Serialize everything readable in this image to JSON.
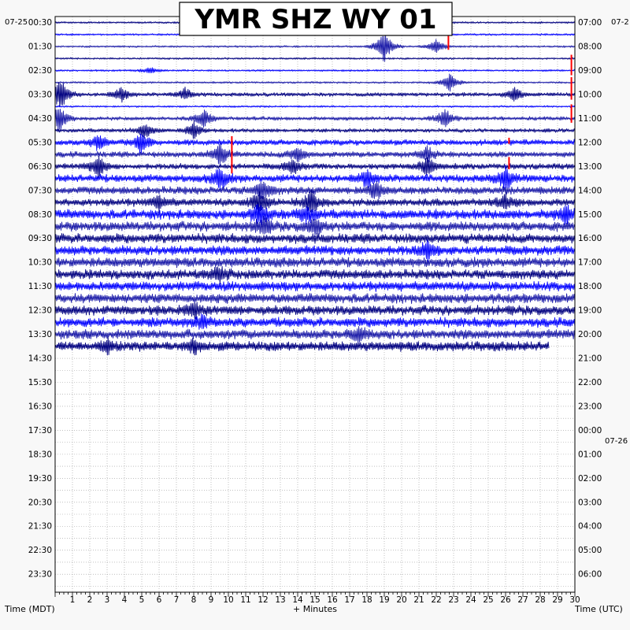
{
  "chart_data": {
    "type": "line",
    "title": "YMR SHZ WY 01",
    "xlabel": "+ Minutes",
    "left_axis_label": "Time (MDT)",
    "right_axis_label": "Time (UTC)",
    "left_date": "07-25",
    "right_date": "07-2",
    "right_date_change": "07-26",
    "x_ticks": [
      1,
      2,
      3,
      4,
      5,
      6,
      7,
      8,
      9,
      10,
      11,
      12,
      13,
      14,
      15,
      16,
      17,
      18,
      19,
      20,
      21,
      22,
      23,
      24,
      25,
      26,
      27,
      28,
      29,
      30
    ],
    "xlim": [
      0,
      30
    ],
    "left_labels": [
      "00:30",
      "01:30",
      "02:30",
      "03:30",
      "04:30",
      "05:30",
      "06:30",
      "07:30",
      "08:30",
      "09:30",
      "10:30",
      "11:30",
      "12:30",
      "13:30",
      "14:30",
      "15:30",
      "16:30",
      "17:30",
      "18:30",
      "19:30",
      "20:30",
      "21:30",
      "22:30",
      "23:30"
    ],
    "right_labels": [
      "07:00",
      "08:00",
      "09:00",
      "10:00",
      "11:00",
      "12:00",
      "13:00",
      "14:00",
      "15:00",
      "16:00",
      "17:00",
      "18:00",
      "19:00",
      "20:00",
      "21:00",
      "22:00",
      "23:00",
      "00:00",
      "01:00",
      "02:00",
      "03:00",
      "04:00",
      "05:00",
      "06:00"
    ],
    "rows_total": 48,
    "rows_recorded": 28,
    "last_row_end_minute": 28.5,
    "trace_colors": [
      "#000080",
      "#0000ff",
      "#1a1aa8"
    ],
    "highlight_color": "#ff0000",
    "grid": true,
    "row_amplitude": [
      1,
      1,
      1,
      1,
      1,
      1,
      2,
      1,
      2,
      2,
      3,
      3,
      3,
      4,
      4,
      4,
      5,
      5,
      5,
      5,
      5,
      5,
      5,
      5,
      5,
      5,
      5,
      5
    ],
    "events": [
      {
        "row": 0,
        "minute": 11.3,
        "amp": 10
      },
      {
        "row": 2,
        "minute": 19.0,
        "amp": 22
      },
      {
        "row": 2,
        "minute": 22.0,
        "amp": 10
      },
      {
        "row": 2,
        "minute": 22.7,
        "amp": 14,
        "red": true
      },
      {
        "row": 4,
        "minute": 5.5,
        "amp": 4
      },
      {
        "row": 4,
        "minute": 29.8,
        "amp": 20,
        "red": true
      },
      {
        "row": 5,
        "minute": 22.8,
        "amp": 12
      },
      {
        "row": 6,
        "minute": 0.3,
        "amp": 22
      },
      {
        "row": 6,
        "minute": 3.8,
        "amp": 9
      },
      {
        "row": 6,
        "minute": 7.5,
        "amp": 7
      },
      {
        "row": 6,
        "minute": 26.5,
        "amp": 9
      },
      {
        "row": 6,
        "minute": 29.8,
        "amp": 22,
        "red": true
      },
      {
        "row": 8,
        "minute": 0.2,
        "amp": 18
      },
      {
        "row": 8,
        "minute": 8.6,
        "amp": 12
      },
      {
        "row": 8,
        "minute": 22.5,
        "amp": 12
      },
      {
        "row": 8,
        "minute": 29.8,
        "amp": 18,
        "red": true
      },
      {
        "row": 9,
        "minute": 5.2,
        "amp": 10
      },
      {
        "row": 9,
        "minute": 8.0,
        "amp": 10
      },
      {
        "row": 10,
        "minute": 2.5,
        "amp": 10
      },
      {
        "row": 10,
        "minute": 5.0,
        "amp": 13
      },
      {
        "row": 10,
        "minute": 10.2,
        "amp": 8,
        "red": true
      },
      {
        "row": 10,
        "minute": 26.2,
        "amp": 6,
        "red": true
      },
      {
        "row": 11,
        "minute": 9.5,
        "amp": 14
      },
      {
        "row": 11,
        "minute": 14.0,
        "amp": 10
      },
      {
        "row": 11,
        "minute": 21.5,
        "amp": 9
      },
      {
        "row": 12,
        "minute": 2.5,
        "amp": 14
      },
      {
        "row": 12,
        "minute": 10.2,
        "amp": 30,
        "red": true
      },
      {
        "row": 12,
        "minute": 13.7,
        "amp": 10
      },
      {
        "row": 12,
        "minute": 21.5,
        "amp": 12
      },
      {
        "row": 12,
        "minute": 26.2,
        "amp": 12,
        "red": true
      },
      {
        "row": 13,
        "minute": 9.5,
        "amp": 14
      },
      {
        "row": 13,
        "minute": 18.0,
        "amp": 10
      },
      {
        "row": 13,
        "minute": 26.0,
        "amp": 14
      },
      {
        "row": 14,
        "minute": 12.0,
        "amp": 12
      },
      {
        "row": 14,
        "minute": 18.5,
        "amp": 12
      },
      {
        "row": 15,
        "minute": 6.0,
        "amp": 8
      },
      {
        "row": 15,
        "minute": 11.8,
        "amp": 14
      },
      {
        "row": 15,
        "minute": 14.8,
        "amp": 14
      },
      {
        "row": 15,
        "minute": 26.0,
        "amp": 8
      },
      {
        "row": 16,
        "minute": 11.8,
        "amp": 12
      },
      {
        "row": 16,
        "minute": 14.5,
        "amp": 10
      },
      {
        "row": 16,
        "minute": 29.5,
        "amp": 10
      },
      {
        "row": 17,
        "minute": 12.0,
        "amp": 10
      },
      {
        "row": 17,
        "minute": 15.0,
        "amp": 10
      },
      {
        "row": 19,
        "minute": 21.5,
        "amp": 10
      },
      {
        "row": 21,
        "minute": 9.5,
        "amp": 8
      },
      {
        "row": 24,
        "minute": 8.0,
        "amp": 8
      },
      {
        "row": 25,
        "minute": 8.5,
        "amp": 8
      },
      {
        "row": 26,
        "minute": 17.5,
        "amp": 8
      },
      {
        "row": 27,
        "minute": 3.0,
        "amp": 8
      },
      {
        "row": 27,
        "minute": 8.0,
        "amp": 8
      }
    ]
  }
}
